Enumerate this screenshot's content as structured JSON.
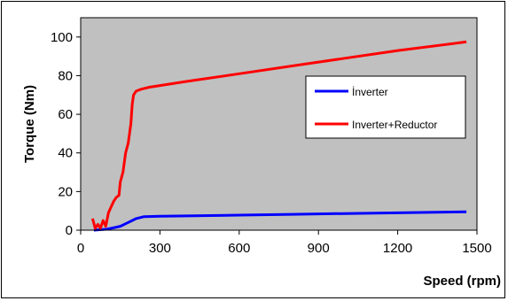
{
  "chart_data": {
    "type": "line",
    "xlabel": "Speed (rpm)",
    "ylabel": "Torque (Nm)",
    "xlim": [
      0,
      1500
    ],
    "ylim": [
      0,
      110
    ],
    "xticks": [
      0,
      300,
      600,
      900,
      1200,
      1500
    ],
    "yticks": [
      0,
      20,
      40,
      60,
      80,
      100
    ],
    "xtick_labels": [
      "0",
      "300",
      "600",
      "900",
      "1200",
      "1500"
    ],
    "ytick_labels": [
      "0",
      "20",
      "40",
      "60",
      "80",
      "100"
    ],
    "plot_background": "#c0c0c0",
    "grid": false,
    "legend_position": "right",
    "series": [
      {
        "name": "İnverter",
        "color": "#0000ff",
        "points": [
          [
            50,
            0
          ],
          [
            100,
            0.5
          ],
          [
            150,
            2
          ],
          [
            180,
            4
          ],
          [
            210,
            6
          ],
          [
            240,
            7
          ],
          [
            300,
            7.2
          ],
          [
            400,
            7.4
          ],
          [
            600,
            7.8
          ],
          [
            800,
            8.2
          ],
          [
            1000,
            8.6
          ],
          [
            1200,
            9
          ],
          [
            1460,
            9.5
          ]
        ]
      },
      {
        "name": "Inverter+Reductor",
        "color": "#ff0000",
        "points": [
          [
            45,
            6
          ],
          [
            55,
            1
          ],
          [
            65,
            3
          ],
          [
            75,
            1
          ],
          [
            85,
            5
          ],
          [
            95,
            2
          ],
          [
            105,
            9
          ],
          [
            115,
            12
          ],
          [
            125,
            15
          ],
          [
            135,
            17
          ],
          [
            145,
            18
          ],
          [
            150,
            25
          ],
          [
            160,
            30
          ],
          [
            170,
            40
          ],
          [
            180,
            45
          ],
          [
            190,
            55
          ],
          [
            195,
            65
          ],
          [
            200,
            70
          ],
          [
            210,
            72
          ],
          [
            230,
            73
          ],
          [
            260,
            74
          ],
          [
            400,
            77
          ],
          [
            600,
            81
          ],
          [
            800,
            85
          ],
          [
            1000,
            89
          ],
          [
            1200,
            93
          ],
          [
            1460,
            97.5
          ]
        ]
      }
    ]
  }
}
